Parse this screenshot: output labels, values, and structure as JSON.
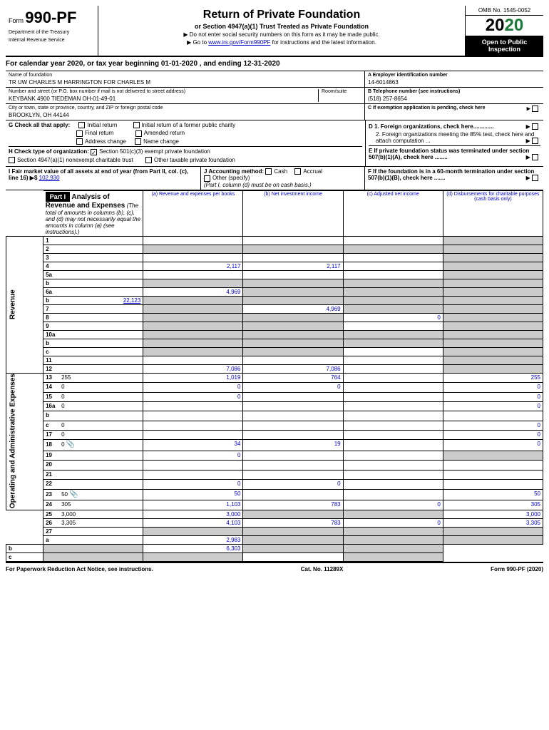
{
  "form": {
    "number": "990-PF",
    "label": "Form",
    "dept1": "Department of the Treasury",
    "dept2": "Internal Revenue Service",
    "title": "Return of Private Foundation",
    "subtitle": "or Section 4947(a)(1) Trust Treated as Private Foundation",
    "note1": "▶ Do not enter social security numbers on this form as it may be made public.",
    "note2_pre": "▶ Go to ",
    "note2_link": "www.irs.gov/Form990PF",
    "note2_post": " for instructions and the latest information.",
    "omb": "OMB No. 1545-0052",
    "year_prefix": "20",
    "year_suffix": "20",
    "inspection": "Open to Public Inspection"
  },
  "cal_year": "For calendar year 2020, or tax year beginning 01-01-2020                          , and ending 12-31-2020",
  "foundation": {
    "name_label": "Name of foundation",
    "name": "TR UW CHARLES M HARRINGTON FOR CHARLES M",
    "addr_label": "Number and street (or P.O. box number if mail is not delivered to street address)",
    "room_label": "Room/suite",
    "addr": "KEYBANK 4900 TIEDEMAN OH-01-49-01",
    "city_label": "City or town, state or province, country, and ZIP or foreign postal code",
    "city": "BROOKLYN, OH  44144",
    "ein_label": "A Employer identification number",
    "ein": "14-6014863",
    "phone_label": "B Telephone number (see instructions)",
    "phone": "(518) 257-8654",
    "c_label": "C If exemption application is pending, check here"
  },
  "g": {
    "label": "G Check all that apply:",
    "opts": [
      "Initial return",
      "Initial return of a former public charity",
      "Final return",
      "Amended return",
      "Address change",
      "Name change"
    ],
    "d1": "D 1. Foreign organizations, check here.............",
    "d2": "2. Foreign organizations meeting the 85% test, check here and attach computation ...",
    "e": "E If private foundation status was terminated under section 507(b)(1)(A), check here ........"
  },
  "h": {
    "label": "H Check type of organization:",
    "opt1": "Section 501(c)(3) exempt private foundation",
    "opt2": "Section 4947(a)(1) nonexempt charitable trust",
    "opt3": "Other taxable private foundation"
  },
  "i": {
    "label": "I Fair market value of all assets at end of year (from Part II, col. (c), line 16) ▶$",
    "value": "102,930"
  },
  "j": {
    "label": "J Accounting method:",
    "opts": [
      "Cash",
      "Accrual",
      "Other (specify)"
    ],
    "note": "(Part I, column (d) must be on cash basis.)"
  },
  "f": "F If the foundation is in a 60-month termination under section 507(b)(1)(B), check here .......",
  "part1": {
    "label": "Part I",
    "title": "Analysis of Revenue and Expenses",
    "sub": "(The total of amounts in columns (b), (c), and (d) may not necessarily equal the amounts in column (a) (see instructions).)",
    "cols": {
      "a": "(a)  Revenue and expenses per books",
      "b": "(b)  Net investment income",
      "c": "(c)  Adjusted net income",
      "d": "(d)  Disbursements for charitable purposes (cash basis only)"
    }
  },
  "revenue_label": "Revenue",
  "expenses_label": "Operating and Administrative Expenses",
  "lines": [
    {
      "n": "1",
      "d": "",
      "a": "",
      "b": "",
      "c": "",
      "shade": [
        "d"
      ]
    },
    {
      "n": "2",
      "d": "",
      "a": "",
      "b": "",
      "c": "",
      "shade": [
        "a",
        "b",
        "c",
        "d"
      ]
    },
    {
      "n": "3",
      "d": "",
      "a": "",
      "b": "",
      "c": "",
      "shade": [
        "d"
      ]
    },
    {
      "n": "4",
      "d": "",
      "a": "2,117",
      "b": "2,117",
      "c": "",
      "shade": [
        "d"
      ]
    },
    {
      "n": "5a",
      "d": "",
      "a": "",
      "b": "",
      "c": "",
      "shade": [
        "d"
      ]
    },
    {
      "n": "b",
      "d": "",
      "a": "",
      "b": "",
      "c": "",
      "shade": [
        "a",
        "b",
        "c",
        "d"
      ]
    },
    {
      "n": "6a",
      "d": "",
      "a": "4,969",
      "b": "",
      "c": "",
      "shade": [
        "b",
        "c",
        "d"
      ]
    },
    {
      "n": "b",
      "d": "",
      "a": "",
      "b": "",
      "c": "",
      "shade": [
        "a",
        "b",
        "c",
        "d"
      ],
      "inline": "22,123"
    },
    {
      "n": "7",
      "d": "",
      "a": "",
      "b": "4,969",
      "c": "",
      "shade": [
        "a",
        "c",
        "d"
      ]
    },
    {
      "n": "8",
      "d": "",
      "a": "",
      "b": "",
      "c": "0",
      "shade": [
        "a",
        "b",
        "d"
      ]
    },
    {
      "n": "9",
      "d": "",
      "a": "",
      "b": "",
      "c": "",
      "shade": [
        "a",
        "b",
        "d"
      ]
    },
    {
      "n": "10a",
      "d": "",
      "a": "",
      "b": "",
      "c": "",
      "shade": [
        "a",
        "b",
        "c",
        "d"
      ]
    },
    {
      "n": "b",
      "d": "",
      "a": "",
      "b": "",
      "c": "",
      "shade": [
        "a",
        "b",
        "c",
        "d"
      ]
    },
    {
      "n": "c",
      "d": "",
      "a": "",
      "b": "",
      "c": "",
      "shade": [
        "a",
        "b",
        "d"
      ]
    },
    {
      "n": "11",
      "d": "",
      "a": "",
      "b": "",
      "c": "",
      "shade": [
        "d"
      ]
    },
    {
      "n": "12",
      "d": "",
      "a": "7,086",
      "b": "7,086",
      "c": "",
      "shade": [
        "d"
      ]
    },
    {
      "n": "13",
      "d": "255",
      "a": "1,019",
      "b": "764",
      "c": ""
    },
    {
      "n": "14",
      "d": "0",
      "a": "0",
      "b": "0",
      "c": ""
    },
    {
      "n": "15",
      "d": "0",
      "a": "0",
      "b": "",
      "c": ""
    },
    {
      "n": "16a",
      "d": "0",
      "a": "",
      "b": "",
      "c": ""
    },
    {
      "n": "b",
      "d": "",
      "a": "",
      "b": "",
      "c": ""
    },
    {
      "n": "c",
      "d": "0",
      "a": "",
      "b": "",
      "c": ""
    },
    {
      "n": "17",
      "d": "0",
      "a": "",
      "b": "",
      "c": ""
    },
    {
      "n": "18",
      "d": "0",
      "a": "34",
      "b": "19",
      "c": "",
      "icon": true
    },
    {
      "n": "19",
      "d": "",
      "a": "0",
      "b": "",
      "c": "",
      "shade": [
        "d"
      ]
    },
    {
      "n": "20",
      "d": "",
      "a": "",
      "b": "",
      "c": ""
    },
    {
      "n": "21",
      "d": "",
      "a": "",
      "b": "",
      "c": ""
    },
    {
      "n": "22",
      "d": "",
      "a": "0",
      "b": "0",
      "c": ""
    },
    {
      "n": "23",
      "d": "50",
      "a": "50",
      "b": "",
      "c": "",
      "icon": true
    },
    {
      "n": "24",
      "d": "305",
      "a": "1,103",
      "b": "783",
      "c": "0"
    },
    {
      "n": "25",
      "d": "3,000",
      "a": "3,000",
      "b": "",
      "c": "",
      "shade": [
        "b",
        "c"
      ]
    },
    {
      "n": "26",
      "d": "3,305",
      "a": "4,103",
      "b": "783",
      "c": "0"
    },
    {
      "n": "27",
      "d": "",
      "a": "",
      "b": "",
      "c": "",
      "shade": [
        "a",
        "b",
        "c",
        "d"
      ]
    },
    {
      "n": "a",
      "d": "",
      "a": "2,983",
      "b": "",
      "c": "",
      "shade": [
        "b",
        "c",
        "d"
      ]
    },
    {
      "n": "b",
      "d": "",
      "a": "",
      "b": "6,303",
      "c": "",
      "shade": [
        "a",
        "c",
        "d"
      ]
    },
    {
      "n": "c",
      "d": "",
      "a": "",
      "b": "",
      "c": "",
      "shade": [
        "a",
        "b",
        "d"
      ]
    }
  ],
  "footer": {
    "left": "For Paperwork Reduction Act Notice, see instructions.",
    "mid": "Cat. No. 11289X",
    "right": "Form 990-PF (2020)"
  }
}
